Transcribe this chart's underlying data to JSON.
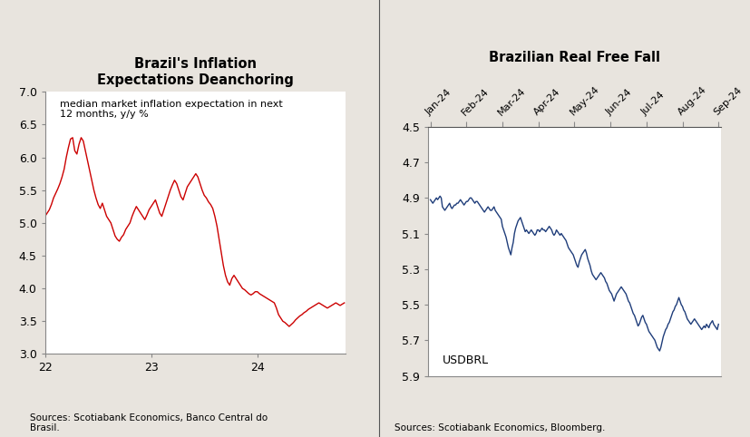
{
  "chart1": {
    "title": "Brazil's Inflation\nExpectations Deanchoring",
    "annotation": "median market inflation expectation in next\n12 months, y/y %",
    "source": "Sources: Scotiabank Economics, Banco Central do\nBrasil.",
    "line_color": "#cc0000",
    "ylim": [
      3.0,
      7.0
    ],
    "yticks": [
      3.0,
      3.5,
      4.0,
      4.5,
      5.0,
      5.5,
      6.0,
      6.5,
      7.0
    ],
    "xlim": [
      22.0,
      24.83
    ],
    "xticks": [
      22,
      23,
      24
    ],
    "xticklabels": [
      "22",
      "23",
      "24"
    ],
    "x": [
      22.0,
      22.02,
      22.04,
      22.06,
      22.08,
      22.1,
      22.12,
      22.14,
      22.16,
      22.18,
      22.2,
      22.22,
      22.24,
      22.26,
      22.28,
      22.3,
      22.32,
      22.34,
      22.36,
      22.38,
      22.4,
      22.42,
      22.44,
      22.46,
      22.48,
      22.5,
      22.52,
      22.54,
      22.56,
      22.58,
      22.6,
      22.62,
      22.64,
      22.66,
      22.68,
      22.7,
      22.72,
      22.74,
      22.76,
      22.78,
      22.8,
      22.82,
      22.84,
      22.86,
      22.88,
      22.9,
      22.92,
      22.94,
      22.96,
      22.98,
      23.0,
      23.02,
      23.04,
      23.06,
      23.08,
      23.1,
      23.12,
      23.14,
      23.16,
      23.18,
      23.2,
      23.22,
      23.24,
      23.26,
      23.28,
      23.3,
      23.32,
      23.34,
      23.36,
      23.38,
      23.4,
      23.42,
      23.44,
      23.46,
      23.48,
      23.5,
      23.52,
      23.54,
      23.56,
      23.58,
      23.6,
      23.62,
      23.64,
      23.66,
      23.68,
      23.7,
      23.72,
      23.74,
      23.76,
      23.78,
      23.8,
      23.82,
      23.84,
      23.86,
      23.88,
      23.9,
      23.92,
      23.94,
      23.96,
      23.98,
      24.0,
      24.02,
      24.04,
      24.06,
      24.08,
      24.1,
      24.12,
      24.14,
      24.16,
      24.18,
      24.2,
      24.22,
      24.24,
      24.26,
      24.28,
      24.3,
      24.32,
      24.34,
      24.36,
      24.38,
      24.4,
      24.42,
      24.44,
      24.46,
      24.48,
      24.5,
      24.52,
      24.54,
      24.56,
      24.58,
      24.6,
      24.62,
      24.64,
      24.66,
      24.68,
      24.7,
      24.72,
      24.74,
      24.76,
      24.78,
      24.8,
      24.82
    ],
    "y": [
      5.1,
      5.15,
      5.2,
      5.28,
      5.38,
      5.45,
      5.52,
      5.6,
      5.7,
      5.82,
      6.0,
      6.15,
      6.28,
      6.3,
      6.1,
      6.05,
      6.2,
      6.3,
      6.25,
      6.1,
      5.95,
      5.8,
      5.65,
      5.5,
      5.38,
      5.28,
      5.22,
      5.3,
      5.2,
      5.1,
      5.05,
      5.0,
      4.9,
      4.8,
      4.75,
      4.72,
      4.78,
      4.82,
      4.9,
      4.95,
      5.0,
      5.1,
      5.18,
      5.25,
      5.2,
      5.15,
      5.1,
      5.05,
      5.12,
      5.2,
      5.25,
      5.3,
      5.35,
      5.25,
      5.15,
      5.1,
      5.2,
      5.3,
      5.4,
      5.5,
      5.58,
      5.65,
      5.6,
      5.5,
      5.4,
      5.35,
      5.45,
      5.55,
      5.6,
      5.65,
      5.7,
      5.75,
      5.7,
      5.6,
      5.5,
      5.42,
      5.38,
      5.32,
      5.28,
      5.22,
      5.1,
      4.95,
      4.75,
      4.55,
      4.35,
      4.2,
      4.1,
      4.05,
      4.15,
      4.2,
      4.15,
      4.1,
      4.05,
      4.0,
      3.98,
      3.95,
      3.92,
      3.9,
      3.92,
      3.95,
      3.95,
      3.92,
      3.9,
      3.88,
      3.86,
      3.84,
      3.82,
      3.8,
      3.78,
      3.7,
      3.6,
      3.55,
      3.5,
      3.48,
      3.45,
      3.42,
      3.45,
      3.48,
      3.52,
      3.55,
      3.58,
      3.6,
      3.63,
      3.65,
      3.68,
      3.7,
      3.72,
      3.74,
      3.76,
      3.78,
      3.76,
      3.74,
      3.72,
      3.7,
      3.72,
      3.74,
      3.76,
      3.78,
      3.76,
      3.74,
      3.76,
      3.78
    ]
  },
  "chart2": {
    "title": "Brazilian Real Free Fall",
    "annotation": "USDBRL",
    "source": "Sources: Scotiabank Economics, Bloomberg.",
    "line_color": "#1f3d7a",
    "ylim": [
      5.9,
      4.5
    ],
    "yticks": [
      4.5,
      4.7,
      4.9,
      5.1,
      5.3,
      5.5,
      5.7,
      5.9
    ],
    "xtick_labels": [
      "Jan-24",
      "Feb-24",
      "Mar-24",
      "Apr-24",
      "May-24",
      "Jun-24",
      "Jul-24",
      "Aug-24",
      "Sep-24"
    ],
    "x": [
      0,
      1,
      2,
      3,
      4,
      5,
      6,
      7,
      8,
      9,
      10,
      11,
      12,
      13,
      14,
      15,
      16,
      17,
      18,
      19,
      20,
      21,
      22,
      23,
      24,
      25,
      26,
      27,
      28,
      29,
      30,
      31,
      32,
      33,
      34,
      35,
      36,
      37,
      38,
      39,
      40,
      41,
      42,
      43,
      44,
      45,
      46,
      47,
      48,
      49,
      50,
      51,
      52,
      53,
      54,
      55,
      56,
      57,
      58,
      59,
      60,
      61,
      62,
      63,
      64,
      65,
      66,
      67,
      68,
      69,
      70,
      71,
      72,
      73,
      74,
      75,
      76,
      77,
      78,
      79,
      80,
      81,
      82,
      83,
      84,
      85,
      86,
      87,
      88,
      89,
      90,
      91,
      92,
      93,
      94,
      95,
      96,
      97,
      98,
      99,
      100,
      101,
      102,
      103,
      104,
      105,
      106,
      107,
      108,
      109,
      110,
      111,
      112,
      113,
      114,
      115,
      116,
      117,
      118,
      119,
      120,
      121,
      122,
      123,
      124,
      125,
      126,
      127,
      128,
      129,
      130,
      131,
      132,
      133,
      134,
      135,
      136,
      137,
      138,
      139,
      140,
      141,
      142,
      143,
      144,
      145,
      146,
      147,
      148,
      149,
      150,
      151,
      152,
      153,
      154,
      155,
      156,
      157,
      158,
      159,
      160,
      161,
      162,
      163,
      164,
      165,
      166,
      167,
      168,
      169,
      170,
      171,
      172,
      173,
      174,
      175,
      176,
      177,
      178,
      179,
      180,
      181,
      182,
      183,
      184,
      185,
      186,
      187,
      188,
      189,
      190,
      191,
      192,
      193,
      194,
      195,
      196,
      197,
      198,
      199,
      200,
      201,
      202,
      203,
      204,
      205,
      206,
      207,
      208,
      209,
      210,
      211,
      212,
      213,
      214,
      215,
      216,
      217,
      218,
      219,
      220,
      221,
      222,
      223,
      224,
      225,
      226,
      227,
      228,
      229,
      230,
      231,
      232,
      233,
      234,
      235,
      236,
      237,
      238,
      239,
      240
    ],
    "y": [
      4.91,
      4.92,
      4.93,
      4.92,
      4.91,
      4.9,
      4.91,
      4.9,
      4.89,
      4.9,
      4.95,
      4.96,
      4.97,
      4.96,
      4.95,
      4.94,
      4.93,
      4.95,
      4.96,
      4.95,
      4.94,
      4.94,
      4.93,
      4.93,
      4.92,
      4.91,
      4.92,
      4.93,
      4.94,
      4.93,
      4.92,
      4.92,
      4.91,
      4.9,
      4.9,
      4.91,
      4.92,
      4.93,
      4.92,
      4.92,
      4.93,
      4.94,
      4.95,
      4.96,
      4.97,
      4.98,
      4.97,
      4.96,
      4.95,
      4.96,
      4.97,
      4.97,
      4.96,
      4.95,
      4.97,
      4.98,
      4.99,
      5.0,
      5.01,
      5.02,
      5.06,
      5.08,
      5.1,
      5.12,
      5.15,
      5.18,
      5.2,
      5.22,
      5.18,
      5.15,
      5.1,
      5.07,
      5.05,
      5.03,
      5.02,
      5.01,
      5.03,
      5.05,
      5.07,
      5.09,
      5.08,
      5.09,
      5.1,
      5.09,
      5.08,
      5.09,
      5.1,
      5.11,
      5.1,
      5.08,
      5.08,
      5.09,
      5.08,
      5.07,
      5.08,
      5.08,
      5.09,
      5.08,
      5.07,
      5.06,
      5.07,
      5.08,
      5.1,
      5.11,
      5.1,
      5.08,
      5.09,
      5.1,
      5.11,
      5.1,
      5.11,
      5.12,
      5.13,
      5.14,
      5.16,
      5.18,
      5.19,
      5.2,
      5.21,
      5.22,
      5.24,
      5.26,
      5.28,
      5.29,
      5.26,
      5.24,
      5.22,
      5.21,
      5.2,
      5.19,
      5.21,
      5.24,
      5.26,
      5.28,
      5.31,
      5.33,
      5.34,
      5.35,
      5.36,
      5.35,
      5.34,
      5.33,
      5.32,
      5.33,
      5.34,
      5.35,
      5.37,
      5.38,
      5.4,
      5.42,
      5.43,
      5.44,
      5.46,
      5.48,
      5.46,
      5.44,
      5.43,
      5.42,
      5.41,
      5.4,
      5.41,
      5.42,
      5.43,
      5.44,
      5.46,
      5.48,
      5.49,
      5.51,
      5.53,
      5.55,
      5.56,
      5.58,
      5.6,
      5.62,
      5.61,
      5.59,
      5.57,
      5.56,
      5.58,
      5.6,
      5.61,
      5.63,
      5.65,
      5.66,
      5.67,
      5.68,
      5.69,
      5.7,
      5.72,
      5.74,
      5.75,
      5.76,
      5.74,
      5.71,
      5.68,
      5.66,
      5.64,
      5.63,
      5.61,
      5.6,
      5.58,
      5.56,
      5.54,
      5.53,
      5.51,
      5.5,
      5.48,
      5.46,
      5.48,
      5.5,
      5.51,
      5.53,
      5.54,
      5.56,
      5.58,
      5.59,
      5.6,
      5.61,
      5.6,
      5.59,
      5.58,
      5.59,
      5.6,
      5.61,
      5.62,
      5.63,
      5.64,
      5.63,
      5.62,
      5.63,
      5.61,
      5.62,
      5.63,
      5.61,
      5.6,
      5.59,
      5.61,
      5.62,
      5.63,
      5.64,
      5.61
    ]
  },
  "bg_color": "#e8e4de",
  "panel_color": "#ffffff",
  "divider_color": "#555555"
}
